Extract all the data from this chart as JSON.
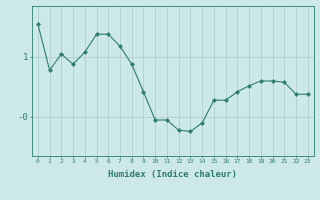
{
  "x": [
    0,
    1,
    2,
    3,
    4,
    5,
    6,
    7,
    8,
    9,
    10,
    11,
    12,
    13,
    14,
    15,
    16,
    17,
    18,
    19,
    20,
    21,
    22,
    23
  ],
  "y": [
    1.55,
    0.78,
    1.05,
    0.88,
    1.08,
    1.38,
    1.38,
    1.18,
    0.88,
    0.42,
    -0.05,
    -0.05,
    -0.22,
    -0.24,
    -0.1,
    0.28,
    0.28,
    0.42,
    0.52,
    0.6,
    0.6,
    0.58,
    0.38,
    0.38
  ],
  "line_color": "#2e7d6e",
  "marker": "D",
  "marker_size": 2,
  "bg_color": "#cce8ea",
  "grid_color": "#b0cdd0",
  "xlabel": "Humidex (Indice chaleur)",
  "ylim": [
    -0.65,
    1.85
  ],
  "xlim": [
    -0.5,
    23.5
  ]
}
